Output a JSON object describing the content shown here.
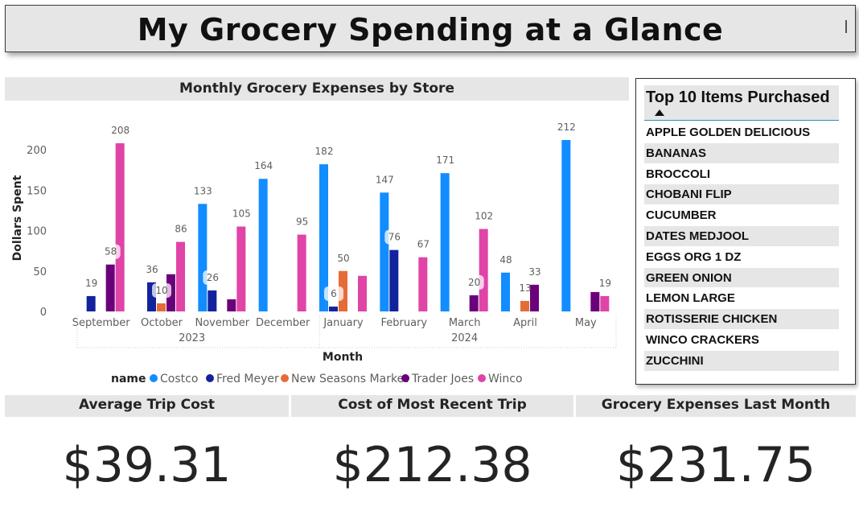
{
  "dashboard": {
    "title": "My Grocery Spending at a Glance"
  },
  "chart_data": {
    "type": "bar",
    "title": "Monthly Grocery Expenses by Store",
    "xlabel": "Month",
    "ylabel": "Dollars Spent",
    "ylim": [
      0,
      225
    ],
    "yticks": [
      0,
      50,
      100,
      150,
      200
    ],
    "categories": [
      "September",
      "October",
      "November",
      "December",
      "January",
      "February",
      "March",
      "April",
      "May"
    ],
    "year_groups": [
      {
        "label": "2023",
        "months": [
          "September",
          "October",
          "November",
          "December"
        ]
      },
      {
        "label": "2024",
        "months": [
          "January",
          "February",
          "March",
          "April",
          "May"
        ]
      }
    ],
    "legend_title": "name",
    "legend_position": "bottom",
    "grid": false,
    "series": [
      {
        "name": "Costco",
        "color": "#118dff",
        "values": [
          null,
          null,
          133,
          164,
          182,
          147,
          171,
          48,
          212
        ]
      },
      {
        "name": "Fred Meyer",
        "color": "#12239e",
        "values": [
          19,
          36,
          26,
          null,
          6,
          76,
          null,
          null,
          null
        ]
      },
      {
        "name": "New Seasons Market",
        "color": "#e66c37",
        "values": [
          null,
          10,
          null,
          null,
          50,
          null,
          null,
          13,
          null
        ]
      },
      {
        "name": "Trader Joes",
        "color": "#6b007b",
        "values": [
          58,
          46,
          15,
          null,
          null,
          null,
          20,
          33,
          24
        ]
      },
      {
        "name": "Winco",
        "color": "#e044a7",
        "values": [
          208,
          86,
          105,
          95,
          44,
          67,
          102,
          null,
          19
        ]
      }
    ],
    "data_labels": [
      {
        "series": "Fred Meyer",
        "month": "September",
        "value": 19
      },
      {
        "series": "Trader Joes",
        "month": "September",
        "value": 58
      },
      {
        "series": "Winco",
        "month": "September",
        "value": 208
      },
      {
        "series": "Fred Meyer",
        "month": "October",
        "value": 36
      },
      {
        "series": "New Seasons Market",
        "month": "October",
        "value": 10
      },
      {
        "series": "Winco",
        "month": "October",
        "value": 86
      },
      {
        "series": "Costco",
        "month": "November",
        "value": 133
      },
      {
        "series": "Fred Meyer",
        "month": "November",
        "value": 26
      },
      {
        "series": "Winco",
        "month": "November",
        "value": 105
      },
      {
        "series": "Costco",
        "month": "December",
        "value": 164
      },
      {
        "series": "Winco",
        "month": "December",
        "value": 95
      },
      {
        "series": "Costco",
        "month": "January",
        "value": 182
      },
      {
        "series": "Fred Meyer",
        "month": "January",
        "value": 6
      },
      {
        "series": "New Seasons Market",
        "month": "January",
        "value": 50
      },
      {
        "series": "Costco",
        "month": "February",
        "value": 147
      },
      {
        "series": "Fred Meyer",
        "month": "February",
        "value": 76
      },
      {
        "series": "Winco",
        "month": "February",
        "value": 67
      },
      {
        "series": "Costco",
        "month": "March",
        "value": 171
      },
      {
        "series": "Trader Joes",
        "month": "March",
        "value": 20
      },
      {
        "series": "Winco",
        "month": "March",
        "value": 102
      },
      {
        "series": "Costco",
        "month": "April",
        "value": 48
      },
      {
        "series": "New Seasons Market",
        "month": "April",
        "value": 13
      },
      {
        "series": "Trader Joes",
        "month": "April",
        "value": 33
      },
      {
        "series": "Costco",
        "month": "May",
        "value": 212
      },
      {
        "series": "Winco",
        "month": "May",
        "value": 19
      }
    ]
  },
  "top_items": {
    "title": "Top 10 Items Purchased",
    "sort_icon": "triangle-up-icon",
    "items": [
      "APPLE GOLDEN DELICIOUS",
      "BANANAS",
      "BROCCOLI",
      "CHOBANI FLIP",
      "CUCUMBER",
      "DATES MEDJOOL",
      "EGGS ORG 1 DZ",
      "GREEN ONION",
      "LEMON LARGE",
      "ROTISSERIE CHICKEN",
      "WINCO CRACKERS",
      "ZUCCHINI"
    ]
  },
  "kpis": {
    "average_trip": {
      "title": "Average Trip Cost",
      "value": "$39.31"
    },
    "recent_trip": {
      "title": "Cost of Most Recent Trip",
      "value": "$212.38"
    },
    "last_month": {
      "title": "Grocery Expenses Last Month",
      "value": "$231.75"
    }
  }
}
